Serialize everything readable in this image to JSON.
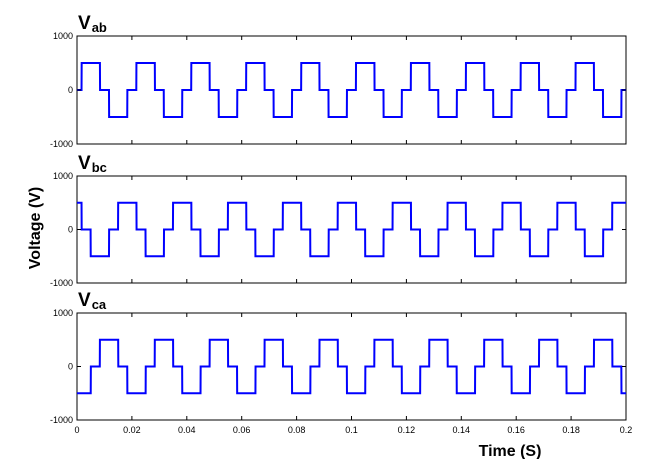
{
  "chart_data": {
    "type": "line",
    "xlabel": "Time (S)",
    "ylabel": "Voltage (V)",
    "xlim": [
      0,
      0.2
    ],
    "x_ticks": [
      "0",
      "0.02",
      "0.04",
      "0.06",
      "0.08",
      "0.1",
      "0.12",
      "0.14",
      "0.16",
      "0.18",
      "0.2"
    ],
    "line_color": "#0000ff",
    "frequency_hz": 50,
    "panels": [
      {
        "title_main": "V",
        "title_sub": "ab",
        "ylim": [
          -1000,
          1000
        ],
        "y_ticks": [
          "1000",
          "0",
          "-1000"
        ],
        "waveform": "three-level square wave",
        "amplitude": 500,
        "pulse_width_s": 0.0067,
        "phase_shift_deg": 0
      },
      {
        "title_main": "V",
        "title_sub": "bc",
        "ylim": [
          -1000,
          1000
        ],
        "y_ticks": [
          "1000",
          "0",
          "-1000"
        ],
        "waveform": "three-level square wave",
        "amplitude": 500,
        "pulse_width_s": 0.0067,
        "phase_shift_deg": -120
      },
      {
        "title_main": "V",
        "title_sub": "ca",
        "ylim": [
          -1000,
          1000
        ],
        "y_ticks": [
          "1000",
          "0",
          "-1000"
        ],
        "waveform": "three-level square wave",
        "amplitude": 500,
        "pulse_width_s": 0.0067,
        "phase_shift_deg": 120
      }
    ]
  }
}
